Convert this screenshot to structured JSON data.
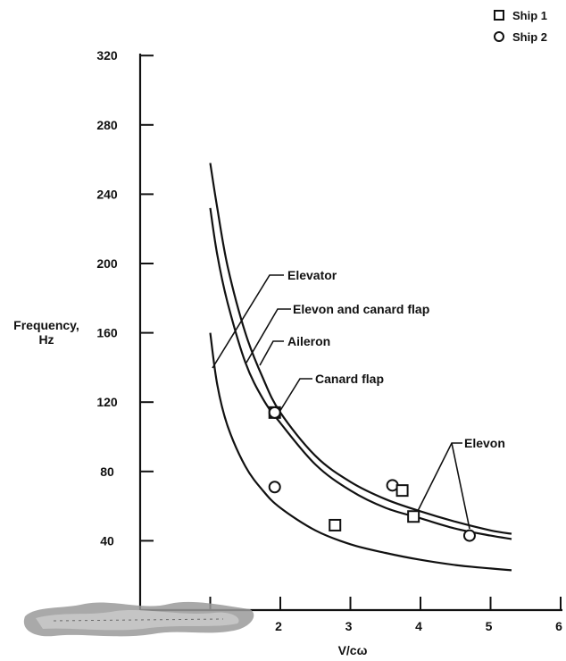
{
  "chart_data": {
    "type": "line",
    "title": "",
    "xlabel": "V/cω",
    "ylabel": "Frequency, Hz",
    "xlim": [
      0,
      6
    ],
    "ylim": [
      0,
      320
    ],
    "x_tick_labels": [
      "2",
      "3",
      "4",
      "5",
      "6"
    ],
    "y_tick_labels": [
      "40",
      "80",
      "120",
      "160",
      "200",
      "240",
      "280",
      "320"
    ],
    "y_tick_labels_shown": [
      "40",
      "80",
      "120",
      "160",
      "200",
      "240",
      "280",
      "320"
    ],
    "grid": false,
    "legend": {
      "placement": "top-right",
      "entries": [
        {
          "marker": "square",
          "label": "Ship 1"
        },
        {
          "marker": "circle",
          "label": "Ship 2"
        }
      ]
    },
    "curves": [
      {
        "id": "upper",
        "x": [
          1.0,
          1.1,
          1.25,
          1.5,
          1.75,
          2.0,
          2.5,
          3.0,
          3.5,
          4.0,
          4.5,
          5.0,
          5.3
        ],
        "y": [
          258,
          232,
          198,
          160,
          134,
          114,
          89,
          74,
          64,
          57,
          51,
          46,
          44
        ]
      },
      {
        "id": "middle",
        "x": [
          1.0,
          1.1,
          1.25,
          1.5,
          1.75,
          2.0,
          2.5,
          3.0,
          3.5,
          4.0,
          4.5,
          5.0,
          5.3
        ],
        "y": [
          232,
          205,
          177,
          143,
          122,
          108,
          84,
          69,
          59,
          53,
          47,
          43,
          41
        ]
      },
      {
        "id": "lower",
        "x": [
          1.0,
          1.1,
          1.25,
          1.5,
          1.75,
          2.0,
          2.5,
          3.0,
          3.5,
          4.0,
          4.5,
          5.0,
          5.3
        ],
        "y": [
          160,
          130,
          106,
          83,
          69,
          59,
          46,
          38,
          33,
          29,
          26,
          24,
          23
        ]
      }
    ],
    "points": [
      {
        "series": "Ship 1",
        "marker": "square",
        "x": 1.92,
        "y": 114
      },
      {
        "series": "Ship 2",
        "marker": "circle",
        "x": 1.92,
        "y": 114
      },
      {
        "series": "Ship 2",
        "marker": "circle",
        "x": 1.92,
        "y": 71
      },
      {
        "series": "Ship 1",
        "marker": "square",
        "x": 2.78,
        "y": 49
      },
      {
        "series": "Ship 2",
        "marker": "circle",
        "x": 3.6,
        "y": 72
      },
      {
        "series": "Ship 1",
        "marker": "square",
        "x": 3.74,
        "y": 69
      },
      {
        "series": "Ship 1",
        "marker": "square",
        "x": 3.9,
        "y": 54
      },
      {
        "series": "Ship 2",
        "marker": "circle",
        "x": 4.7,
        "y": 43
      }
    ],
    "annotations": [
      {
        "label": "Elevator"
      },
      {
        "label": "Elevon and canard flap"
      },
      {
        "label": "Aileron"
      },
      {
        "label": "Canard flap"
      },
      {
        "label": "Elevon"
      }
    ]
  }
}
